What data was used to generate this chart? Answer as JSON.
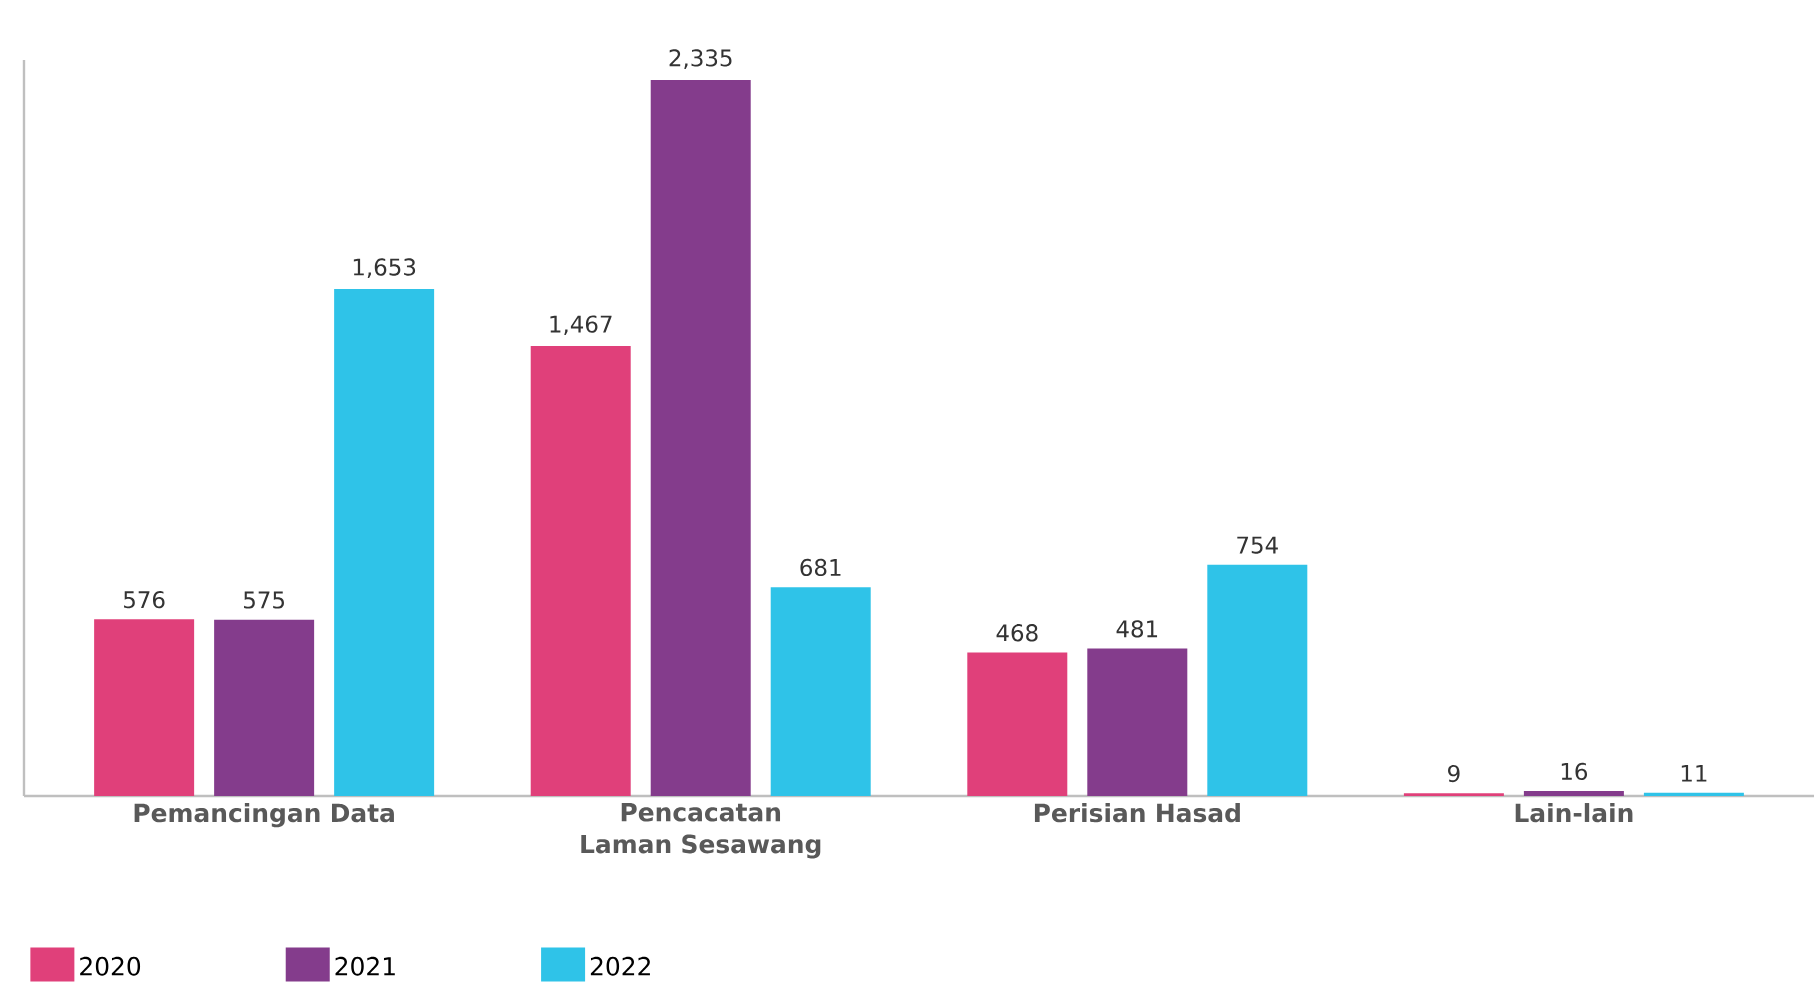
{
  "chart_data": {
    "type": "bar",
    "categories": [
      "Pemancingan Data",
      "Pencacatan Laman Sesawang",
      "Perisian Hasad",
      "Lain-lain"
    ],
    "series": [
      {
        "name": "2020",
        "color": "#e0407a",
        "values": [
          576,
          1467,
          468,
          9
        ],
        "value_labels": [
          "576",
          "1,467",
          "468",
          "9"
        ]
      },
      {
        "name": "2021",
        "color": "#843c8c",
        "values": [
          575,
          2335,
          481,
          16
        ],
        "value_labels": [
          "575",
          "2,335",
          "481",
          "16"
        ]
      },
      {
        "name": "2022",
        "color": "#2fc3e8",
        "values": [
          1653,
          681,
          754,
          11
        ],
        "value_labels": [
          "1,653",
          "681",
          "754",
          "11"
        ]
      }
    ],
    "ylim": [
      0,
      2400
    ],
    "tick_labels": "x",
    "legend": "bottom left"
  }
}
